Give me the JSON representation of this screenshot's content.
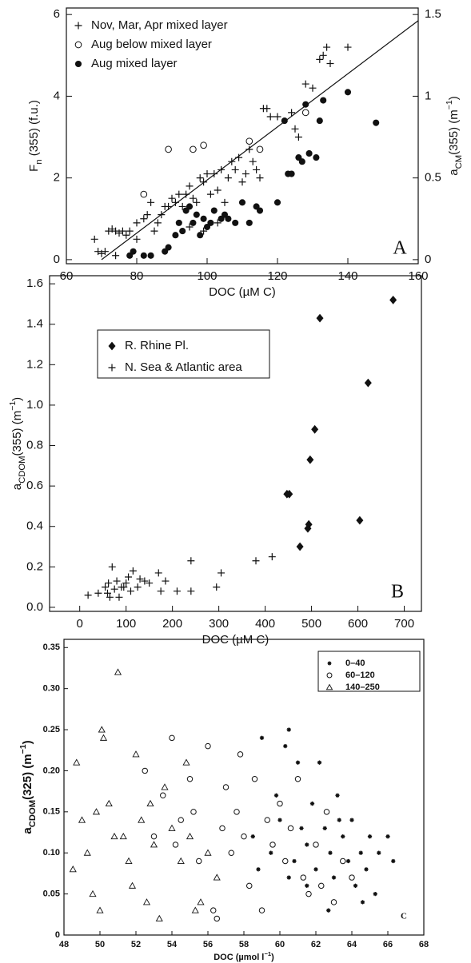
{
  "chart_data": [
    {
      "type": "scatter",
      "xlabel": "DOC (µM C)",
      "ylabel": [
        {
          "text": "F"
        },
        {
          "sub": "n"
        },
        {
          "text": " (355)  (f.u.)"
        }
      ],
      "y2label": [
        {
          "text": "a"
        },
        {
          "sub": "CM"
        },
        {
          "text": "(355)  (m"
        },
        {
          "sup": "−1"
        },
        {
          "text": ")"
        }
      ],
      "annotation": "A",
      "xlim": [
        60,
        160
      ],
      "xticks": [
        60,
        80,
        100,
        120,
        140,
        160
      ],
      "ylim": [
        -0.1,
        6.16
      ],
      "yticks": [
        0,
        2,
        4,
        6
      ],
      "y2lim": [
        -0.025,
        1.54
      ],
      "y2ticks": [
        0,
        0.5,
        1,
        1.5
      ],
      "legend": "upper left",
      "fit_line": {
        "x": [
          70,
          160
        ],
        "y": [
          0,
          5.85
        ]
      },
      "series": [
        {
          "name": "Nov, Mar, Apr mixed layer",
          "marker": "plus",
          "color": "#111",
          "x": [
            68,
            69,
            70,
            71,
            72,
            73,
            74,
            75,
            76,
            77,
            78,
            80,
            82,
            83,
            84,
            85,
            86,
            87,
            88,
            89,
            90,
            91,
            92,
            93,
            94,
            95,
            96,
            97,
            98,
            99,
            100,
            101,
            102,
            103,
            104,
            105,
            106,
            107,
            108,
            109,
            110,
            111,
            112,
            113,
            114,
            115,
            116,
            117,
            118,
            120,
            124,
            125,
            126,
            128,
            130,
            132,
            133,
            134,
            135,
            140,
            95,
            99,
            103,
            74,
            80
          ],
          "values": [
            0.5,
            0.2,
            0.15,
            0.2,
            0.7,
            0.75,
            0.7,
            0.65,
            0.7,
            0.6,
            0.7,
            0.5,
            1.0,
            1.1,
            1.4,
            0.7,
            0.9,
            1.1,
            1.3,
            1.3,
            1.5,
            1.4,
            1.6,
            1.3,
            1.6,
            1.8,
            1.5,
            1.4,
            2.0,
            1.9,
            2.1,
            1.6,
            2.1,
            1.7,
            2.2,
            1.4,
            2.0,
            2.4,
            2.2,
            2.5,
            1.9,
            2.1,
            2.7,
            2.4,
            2.2,
            2.0,
            3.7,
            3.7,
            3.5,
            3.5,
            3.6,
            3.2,
            3.0,
            4.3,
            4.2,
            4.9,
            5.0,
            5.2,
            4.8,
            5.2,
            0.8,
            0.7,
            0.9,
            0.1,
            0.9
          ]
        },
        {
          "name": "Aug below mixed layer",
          "marker": "circle-open",
          "color": "#111",
          "x": [
            82,
            89,
            96,
            99,
            112,
            115,
            128
          ],
          "values": [
            1.6,
            2.7,
            2.7,
            2.8,
            2.9,
            2.7,
            3.6
          ]
        },
        {
          "name": "Aug mixed layer",
          "marker": "circle-filled",
          "color": "#111",
          "x": [
            78,
            79,
            82,
            84,
            88,
            89,
            91,
            92,
            93,
            94,
            95,
            96,
            97,
            98,
            99,
            100,
            101,
            102,
            104,
            105,
            106,
            108,
            110,
            112,
            114,
            115,
            120,
            122,
            123,
            124,
            126,
            127,
            128,
            129,
            131,
            132,
            133,
            140,
            148
          ],
          "values": [
            0.1,
            0.2,
            0.1,
            0.1,
            0.2,
            0.3,
            0.6,
            0.9,
            0.7,
            1.2,
            1.3,
            0.9,
            1.1,
            0.6,
            1.0,
            0.8,
            0.9,
            1.2,
            1.0,
            1.1,
            1.0,
            0.9,
            1.4,
            0.9,
            1.3,
            1.2,
            1.4,
            3.4,
            2.1,
            2.1,
            2.5,
            2.4,
            3.8,
            2.6,
            2.5,
            3.4,
            3.9,
            4.1,
            3.35
          ]
        }
      ]
    },
    {
      "type": "scatter",
      "xlabel": "DOC (µM C)",
      "ylabel": [
        {
          "text": "a"
        },
        {
          "sub": "CDOM"
        },
        {
          "text": "(355)  (m"
        },
        {
          "sup": "−1"
        },
        {
          "text": ")"
        }
      ],
      "annotation": "B",
      "xlim": [
        -65,
        737
      ],
      "xticks": [
        0,
        100,
        200,
        300,
        400,
        500,
        600,
        700
      ],
      "ylim": [
        -0.02,
        1.64
      ],
      "yticks": [
        {
          "value": 0,
          "label": "0.0"
        },
        0.2,
        0.4,
        0.6,
        0.8,
        {
          "value": 1,
          "label": "1.0"
        },
        1.2,
        1.4,
        1.6
      ],
      "legend": "upper left",
      "series": [
        {
          "name": "R. Rhine Pl.",
          "marker": "diamond",
          "color": "#111",
          "x": [
            447,
            452,
            475,
            492,
            494,
            497,
            507,
            518,
            604,
            622,
            676
          ],
          "values": [
            0.56,
            0.56,
            0.3,
            0.39,
            0.41,
            0.73,
            0.88,
            1.43,
            0.43,
            1.11,
            1.52
          ]
        },
        {
          "name": "N. Sea & Atlantic area",
          "marker": "plus",
          "color": "#111",
          "x": [
            18,
            40,
            55,
            60,
            62,
            65,
            70,
            75,
            80,
            90,
            95,
            100,
            105,
            110,
            115,
            125,
            140,
            150,
            170,
            175,
            185,
            210,
            240,
            240,
            295,
            305,
            380,
            415,
            85,
            130
          ],
          "values": [
            0.06,
            0.07,
            0.1,
            0.07,
            0.12,
            0.05,
            0.2,
            0.09,
            0.13,
            0.1,
            0.1,
            0.12,
            0.15,
            0.08,
            0.18,
            0.1,
            0.13,
            0.12,
            0.17,
            0.08,
            0.13,
            0.08,
            0.23,
            0.08,
            0.1,
            0.17,
            0.23,
            0.25,
            0.05,
            0.14
          ]
        }
      ]
    },
    {
      "type": "scatter",
      "xlabel": [
        {
          "text": "DOC  (µmol l"
        },
        {
          "sup": "−1"
        },
        {
          "text": ")"
        }
      ],
      "ylabel": [
        {
          "text": "a"
        },
        {
          "sub": "CDOM"
        },
        {
          "text": "(325)  (m"
        },
        {
          "sup": "−1"
        },
        {
          "text": ")"
        }
      ],
      "annotation": "C",
      "xlim": [
        48,
        68
      ],
      "xticks": [
        48,
        50,
        52,
        54,
        56,
        58,
        60,
        62,
        64,
        66,
        68
      ],
      "ylim": [
        0,
        0.36
      ],
      "yticks": [
        0,
        0.05,
        {
          "value": 0.1,
          "label": "0.10"
        },
        0.15,
        {
          "value": 0.2,
          "label": "0.20"
        },
        0.25,
        {
          "value": 0.3,
          "label": "0.30"
        },
        0.35
      ],
      "legend": "upper right",
      "series": [
        {
          "name": "0–40",
          "marker": "star",
          "color": "#111",
          "x": [
            58.5,
            59,
            59.5,
            60,
            60.3,
            60.5,
            60.8,
            61,
            61.2,
            61.5,
            61.8,
            62,
            62.2,
            62.5,
            62.8,
            63,
            63.2,
            63.5,
            63.8,
            64,
            64.2,
            64.5,
            64.8,
            65,
            65.3,
            65.5,
            66,
            66.3,
            60.5,
            61.5,
            62.7,
            63.3,
            59.8,
            58.8,
            64.6
          ],
          "values": [
            0.12,
            0.24,
            0.1,
            0.14,
            0.23,
            0.25,
            0.09,
            0.21,
            0.13,
            0.11,
            0.16,
            0.08,
            0.21,
            0.13,
            0.1,
            0.07,
            0.17,
            0.12,
            0.09,
            0.14,
            0.06,
            0.1,
            0.08,
            0.12,
            0.05,
            0.1,
            0.12,
            0.09,
            0.07,
            0.06,
            0.03,
            0.14,
            0.17,
            0.08,
            0.04
          ]
        },
        {
          "name": "60–120",
          "marker": "circle-open",
          "color": "#111",
          "x": [
            52.5,
            53,
            53.5,
            54,
            54.5,
            55,
            55.5,
            56,
            56.3,
            56.5,
            56.8,
            57,
            57.3,
            57.6,
            58,
            58.3,
            58.6,
            59,
            59.3,
            59.6,
            60,
            60.3,
            60.6,
            61,
            61.3,
            61.6,
            62,
            62.3,
            62.6,
            63,
            63.5,
            64,
            55.2,
            54.2,
            57.8
          ],
          "values": [
            0.2,
            0.12,
            0.17,
            0.24,
            0.14,
            0.19,
            0.09,
            0.23,
            0.03,
            0.02,
            0.13,
            0.18,
            0.1,
            0.15,
            0.12,
            0.06,
            0.19,
            0.03,
            0.14,
            0.11,
            0.16,
            0.09,
            0.13,
            0.19,
            0.07,
            0.05,
            0.11,
            0.06,
            0.15,
            0.04,
            0.09,
            0.07,
            0.15,
            0.11,
            0.22
          ]
        },
        {
          "name": "140–250",
          "marker": "triangle-open",
          "color": "#111",
          "x": [
            48.5,
            48.7,
            49,
            49.3,
            49.6,
            50,
            50.1,
            50.2,
            50.5,
            51,
            51.3,
            51.6,
            52,
            52.3,
            52.6,
            53,
            53.3,
            53.6,
            54,
            54.5,
            55,
            55.3,
            55.6,
            56,
            56.5,
            49.8,
            51.8,
            52.8,
            54.8,
            50.8
          ],
          "values": [
            0.08,
            0.21,
            0.14,
            0.1,
            0.05,
            0.03,
            0.25,
            0.24,
            0.16,
            0.32,
            0.12,
            0.09,
            0.22,
            0.14,
            0.04,
            0.11,
            0.02,
            0.18,
            0.13,
            0.09,
            0.12,
            0.03,
            0.04,
            0.1,
            0.07,
            0.15,
            0.06,
            0.16,
            0.21,
            0.12
          ]
        }
      ]
    }
  ]
}
